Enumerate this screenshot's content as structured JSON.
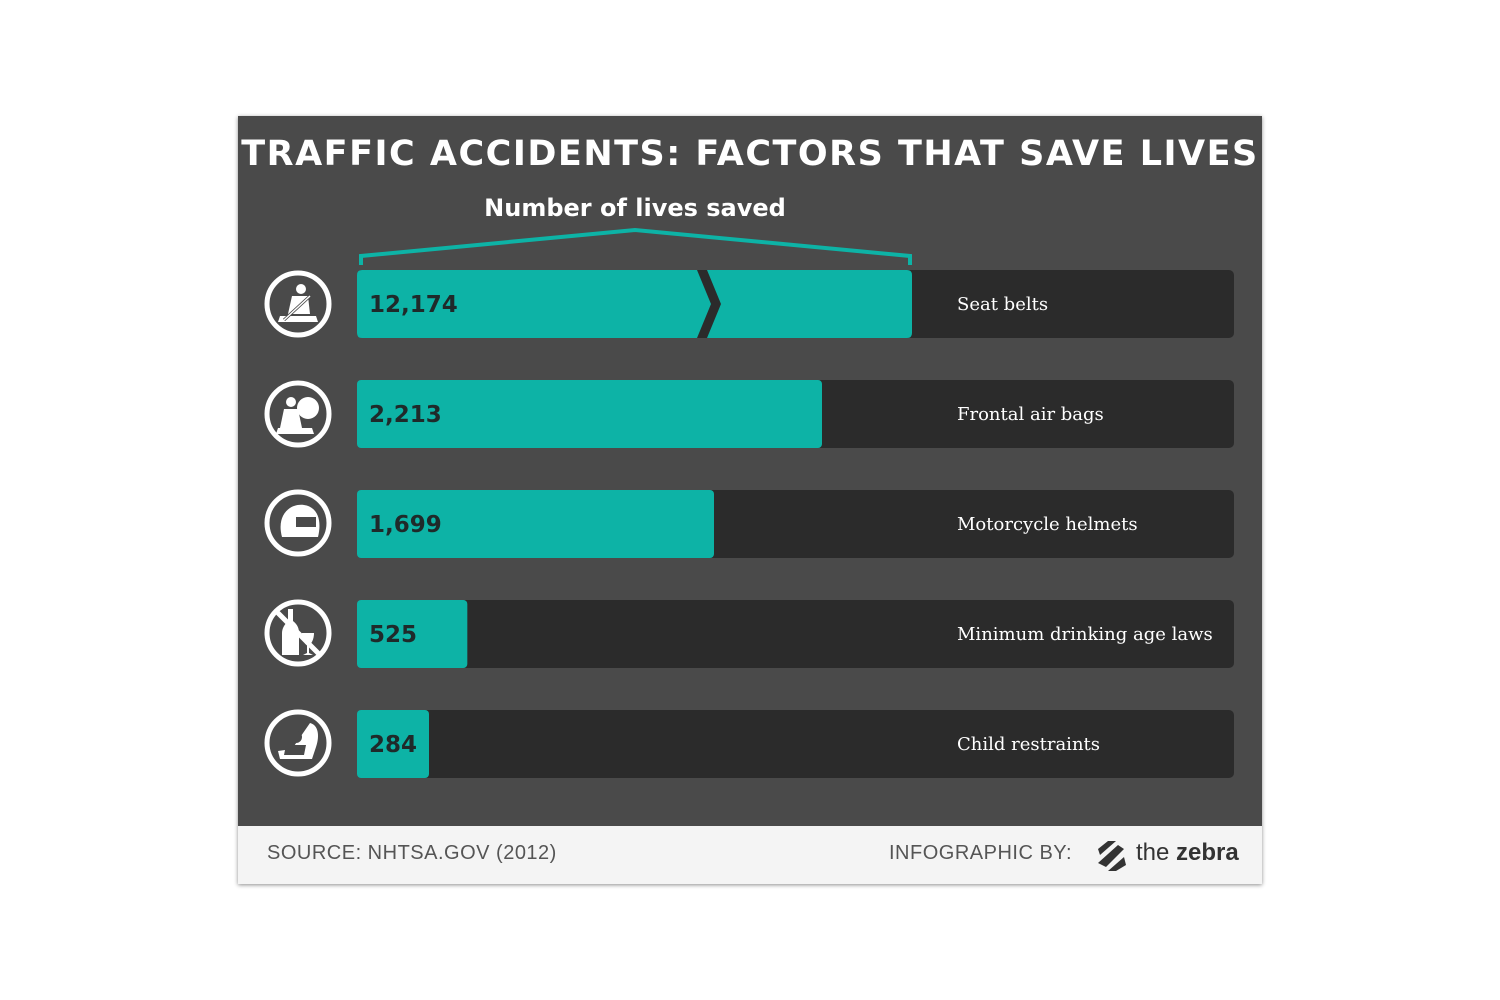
{
  "chart_data": {
    "type": "bar",
    "orientation": "horizontal",
    "title": "TRAFFIC ACCIDENTS: FACTORS THAT SAVE LIVES",
    "xlabel": "Number of lives saved",
    "categories": [
      "Seat belts",
      "Frontal air bags",
      "Motorcycle helmets",
      "Minimum drinking age laws",
      "Child restraints"
    ],
    "values": [
      12174,
      2213,
      1699,
      525,
      284
    ],
    "value_labels": [
      "12,174",
      "2,213",
      "1,699",
      "525",
      "284"
    ],
    "axis_break": true,
    "xlim": [
      0,
      4200
    ],
    "grid": false,
    "legend": "none"
  },
  "icons": [
    "seatbelt-icon",
    "airbag-icon",
    "helmet-icon",
    "no-alcohol-icon",
    "child-seat-icon"
  ],
  "colors": {
    "bar": "#0db3a6",
    "track": "#2b2b2b",
    "background": "#4a4a4a",
    "footer": "#f4f4f4"
  },
  "footer": {
    "source": "SOURCE: NHTSA.GOV (2012)",
    "credit": "INFOGRAPHIC BY:",
    "logo_light": "the",
    "logo_bold": "zebra"
  }
}
